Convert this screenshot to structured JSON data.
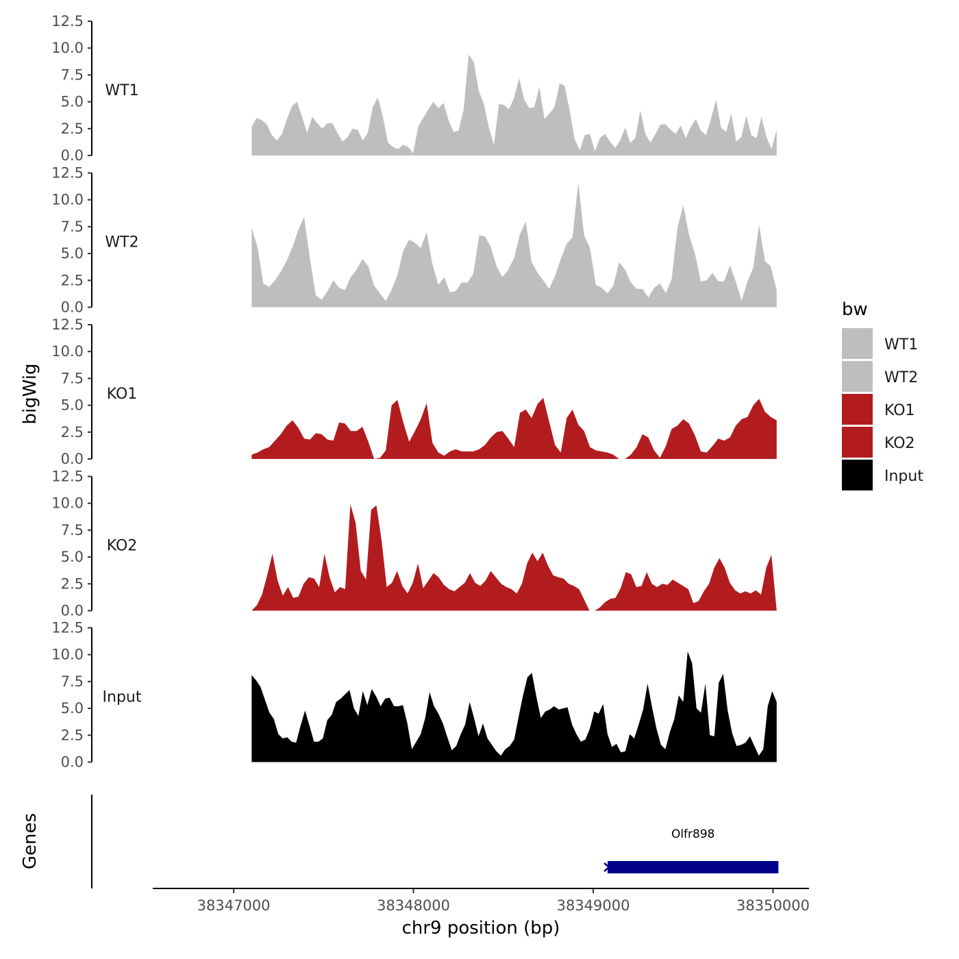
{
  "chart_data": {
    "type": "area",
    "region": {
      "chromosome": "chr9",
      "start": 38347100,
      "end": 38350020
    },
    "xlabel": "chr9 position (bp)",
    "ylabel": "bigWig",
    "genes_label": "Genes",
    "xlim": [
      38346550,
      38350200
    ],
    "x_ticks": [
      {
        "value": 38347000,
        "label": "38347000"
      },
      {
        "value": 38348000,
        "label": "38348000"
      },
      {
        "value": 38349000,
        "label": "38349000"
      },
      {
        "value": 38350000,
        "label": "38350000"
      }
    ],
    "ylim": [
      0,
      12.5
    ],
    "y_ticks": [
      {
        "value": 0,
        "label": "0.0"
      },
      {
        "value": 2.5,
        "label": "2.5"
      },
      {
        "value": 5,
        "label": "5.0"
      },
      {
        "value": 7.5,
        "label": "7.5"
      },
      {
        "value": 10,
        "label": "10.0"
      },
      {
        "value": 12.5,
        "label": "12.5"
      }
    ],
    "legend": {
      "title": "bw",
      "entries": [
        {
          "label": "WT1",
          "color": "#bebebe"
        },
        {
          "label": "WT2",
          "color": "#bebebe"
        },
        {
          "label": "KO1",
          "color": "#b21c1f"
        },
        {
          "label": "KO2",
          "color": "#b21c1f"
        },
        {
          "label": "Input",
          "color": "#000000"
        }
      ]
    },
    "series": [
      {
        "name": "WT1",
        "color": "#bebebe",
        "values": [
          2.7,
          3.5,
          3.3,
          2.9,
          1.9,
          1.4,
          2.0,
          3.4,
          4.6,
          5.0,
          3.6,
          2.1,
          3.6,
          3.0,
          2.5,
          3.0,
          3.0,
          2.1,
          1.3,
          1.7,
          2.5,
          2.4,
          1.4,
          2.1,
          4.5,
          5.4,
          3.6,
          1.2,
          0.8,
          0.6,
          1.0,
          0.8,
          0.2,
          2.7,
          3.5,
          4.3,
          5.0,
          4.4,
          4.9,
          3.3,
          2.2,
          2.3,
          4.3,
          9.4,
          8.7,
          6.0,
          4.8,
          2.6,
          1.0,
          4.8,
          4.7,
          4.3,
          5.4,
          7.2,
          5.2,
          4.4,
          4.5,
          6.4,
          3.4,
          3.9,
          4.5,
          6.7,
          6.5,
          4.2,
          1.5,
          0.5,
          1.9,
          2.0,
          0.4,
          1.6,
          2.0,
          1.3,
          0.7,
          1.4,
          2.6,
          1.2,
          1.6,
          4.2,
          2.0,
          1.2,
          2.0,
          2.9,
          2.9,
          2.4,
          2.0,
          2.8,
          1.6,
          2.7,
          3.4,
          2.3,
          1.9,
          3.4,
          5.2,
          2.6,
          2.2,
          3.9,
          1.3,
          1.7,
          3.7,
          1.9,
          1.6,
          3.6,
          1.7,
          0.6,
          2.4
        ]
      },
      {
        "name": "WT2",
        "color": "#bebebe",
        "values": [
          7.4,
          5.6,
          2.2,
          1.9,
          2.5,
          3.3,
          4.3,
          5.6,
          7.2,
          8.4,
          4.5,
          1.1,
          0.7,
          1.5,
          2.5,
          1.8,
          1.6,
          2.8,
          3.5,
          4.5,
          3.8,
          2.0,
          1.3,
          0.6,
          1.6,
          3.0,
          5.3,
          6.3,
          6.0,
          5.5,
          7.0,
          4.0,
          2.1,
          2.8,
          1.4,
          1.5,
          2.3,
          2.3,
          3.1,
          6.7,
          6.6,
          5.6,
          3.8,
          2.8,
          3.5,
          4.6,
          6.8,
          8.0,
          4.2,
          3.2,
          2.5,
          1.7,
          2.9,
          4.5,
          5.9,
          6.5,
          11.6,
          6.7,
          5.5,
          2.1,
          1.8,
          1.3,
          2.0,
          4.2,
          3.5,
          2.3,
          1.7,
          1.7,
          0.9,
          1.8,
          2.2,
          1.3,
          2.6,
          7.4,
          9.5,
          6.7,
          5.0,
          2.4,
          2.5,
          3.2,
          2.4,
          2.4,
          3.9,
          2.4,
          0.6,
          2.4,
          3.7,
          7.7,
          4.3,
          3.8,
          1.6
        ]
      },
      {
        "name": "KO1",
        "color": "#b21c1f",
        "values": [
          0.4,
          0.6,
          0.9,
          1.1,
          1.7,
          2.3,
          3.1,
          3.6,
          2.9,
          1.9,
          1.8,
          2.4,
          2.3,
          1.8,
          1.7,
          3.4,
          3.3,
          2.6,
          2.6,
          3.0,
          1.6,
          0.0,
          0.1,
          0.8,
          5.0,
          5.5,
          3.4,
          1.6,
          2.6,
          3.7,
          5.2,
          1.5,
          0.6,
          0.3,
          0.7,
          0.9,
          0.7,
          0.7,
          0.7,
          0.9,
          1.3,
          2.0,
          2.5,
          2.6,
          1.9,
          1.1,
          4.3,
          4.6,
          3.8,
          5.1,
          5.7,
          3.5,
          1.3,
          0.6,
          3.8,
          4.6,
          3.2,
          2.6,
          1.1,
          0.8,
          0.7,
          0.6,
          0.4,
          0.0,
          0.0,
          0.4,
          1.1,
          2.3,
          2.0,
          0.8,
          0.1,
          1.2,
          2.8,
          3.1,
          3.7,
          3.3,
          2.2,
          0.7,
          0.6,
          1.2,
          1.9,
          1.7,
          2.0,
          3.1,
          3.7,
          3.9,
          5.0,
          5.6,
          4.4,
          3.9,
          3.6
        ]
      },
      {
        "name": "KO2",
        "color": "#b21c1f",
        "values": [
          0.0,
          0.5,
          1.5,
          3.3,
          5.3,
          2.8,
          1.4,
          2.2,
          1.2,
          1.3,
          2.5,
          3.1,
          3.0,
          2.2,
          5.3,
          3.1,
          1.7,
          2.2,
          2.0,
          9.9,
          8.2,
          3.7,
          2.9,
          9.4,
          9.8,
          6.5,
          2.2,
          2.6,
          3.7,
          2.3,
          1.6,
          2.6,
          4.4,
          2.1,
          2.8,
          3.5,
          3.1,
          2.4,
          2.0,
          1.8,
          2.2,
          2.6,
          3.5,
          2.6,
          2.3,
          2.8,
          3.7,
          3.1,
          2.5,
          2.2,
          2.0,
          1.6,
          2.5,
          4.4,
          5.4,
          4.6,
          5.4,
          4.2,
          3.3,
          3.1,
          3.0,
          2.5,
          2.3,
          2.0,
          1.0,
          0.0,
          0.0,
          0.3,
          0.8,
          1.1,
          1.2,
          2.1,
          3.6,
          3.4,
          2.2,
          2.3,
          3.6,
          2.5,
          2.2,
          2.5,
          2.4,
          2.9,
          2.6,
          2.3,
          2.0,
          0.7,
          0.9,
          1.8,
          2.5,
          4.0,
          4.9,
          4.0,
          2.6,
          1.9,
          1.6,
          1.8,
          1.6,
          1.9,
          1.5,
          4.0,
          5.2,
          0.0
        ]
      },
      {
        "name": "Input",
        "color": "#000000",
        "values": [
          8.1,
          7.6,
          7.0,
          5.8,
          4.6,
          4.0,
          2.6,
          2.2,
          2.3,
          1.9,
          1.8,
          3.4,
          4.8,
          3.4,
          1.9,
          1.9,
          2.2,
          3.9,
          4.4,
          5.6,
          5.9,
          6.3,
          6.7,
          5.0,
          4.3,
          6.6,
          5.3,
          6.8,
          6.1,
          5.2,
          5.9,
          6.0,
          5.2,
          5.2,
          5.3,
          3.6,
          1.2,
          1.9,
          2.6,
          4.1,
          6.5,
          5.2,
          4.5,
          3.6,
          2.3,
          1.1,
          1.5,
          2.6,
          3.5,
          5.6,
          4.1,
          2.4,
          3.6,
          2.2,
          1.6,
          1.0,
          0.6,
          1.2,
          1.5,
          2.1,
          4.2,
          6.2,
          7.9,
          8.3,
          6.1,
          4.1,
          4.7,
          4.9,
          5.2,
          4.9,
          5.0,
          5.1,
          3.5,
          2.6,
          1.9,
          2.1,
          3.1,
          4.7,
          4.5,
          5.4,
          2.6,
          1.4,
          1.7,
          0.9,
          1.0,
          2.6,
          2.2,
          3.5,
          4.9,
          7.3,
          5.1,
          3.1,
          1.6,
          1.2,
          2.8,
          4.0,
          6.2,
          5.6,
          10.3,
          9.2,
          5.0,
          4.6,
          7.3,
          2.5,
          2.4,
          7.4,
          8.2,
          4.8,
          2.7,
          1.5,
          1.6,
          1.8,
          2.4,
          1.5,
          0.6,
          1.2,
          5.2,
          6.6,
          5.6
        ]
      }
    ],
    "genes": [
      {
        "name": "Olfr898",
        "start": 38349080,
        "end": 38350030,
        "strand": "-",
        "color": "#00008b"
      }
    ]
  }
}
